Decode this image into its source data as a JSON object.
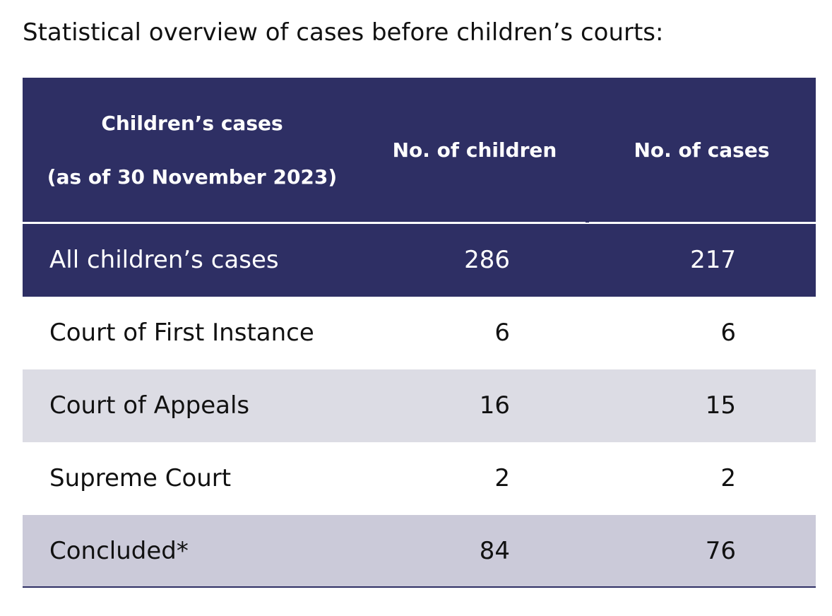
{
  "title": "Statistical overview of cases before children’s courts:",
  "colors": {
    "header_bg": "#2e2f64",
    "row_light": "#dcdce4",
    "row_mid": "#cbcad9",
    "text": "#111111"
  },
  "table": {
    "headers": [
      [
        "Children’s cases",
        "(as of 30 November 2023)"
      ],
      [
        "No. of children"
      ],
      [
        "No. of cases"
      ]
    ],
    "rows": [
      {
        "label": "All children’s cases",
        "children": "286",
        "cases": "217"
      },
      {
        "label": "Court of First Instance",
        "children": "6",
        "cases": "6"
      },
      {
        "label": "Court of Appeals",
        "children": "16",
        "cases": "15"
      },
      {
        "label": "Supreme Court",
        "children": "2",
        "cases": "2"
      },
      {
        "label": "Concluded*",
        "children": "84",
        "cases": "76"
      }
    ]
  }
}
